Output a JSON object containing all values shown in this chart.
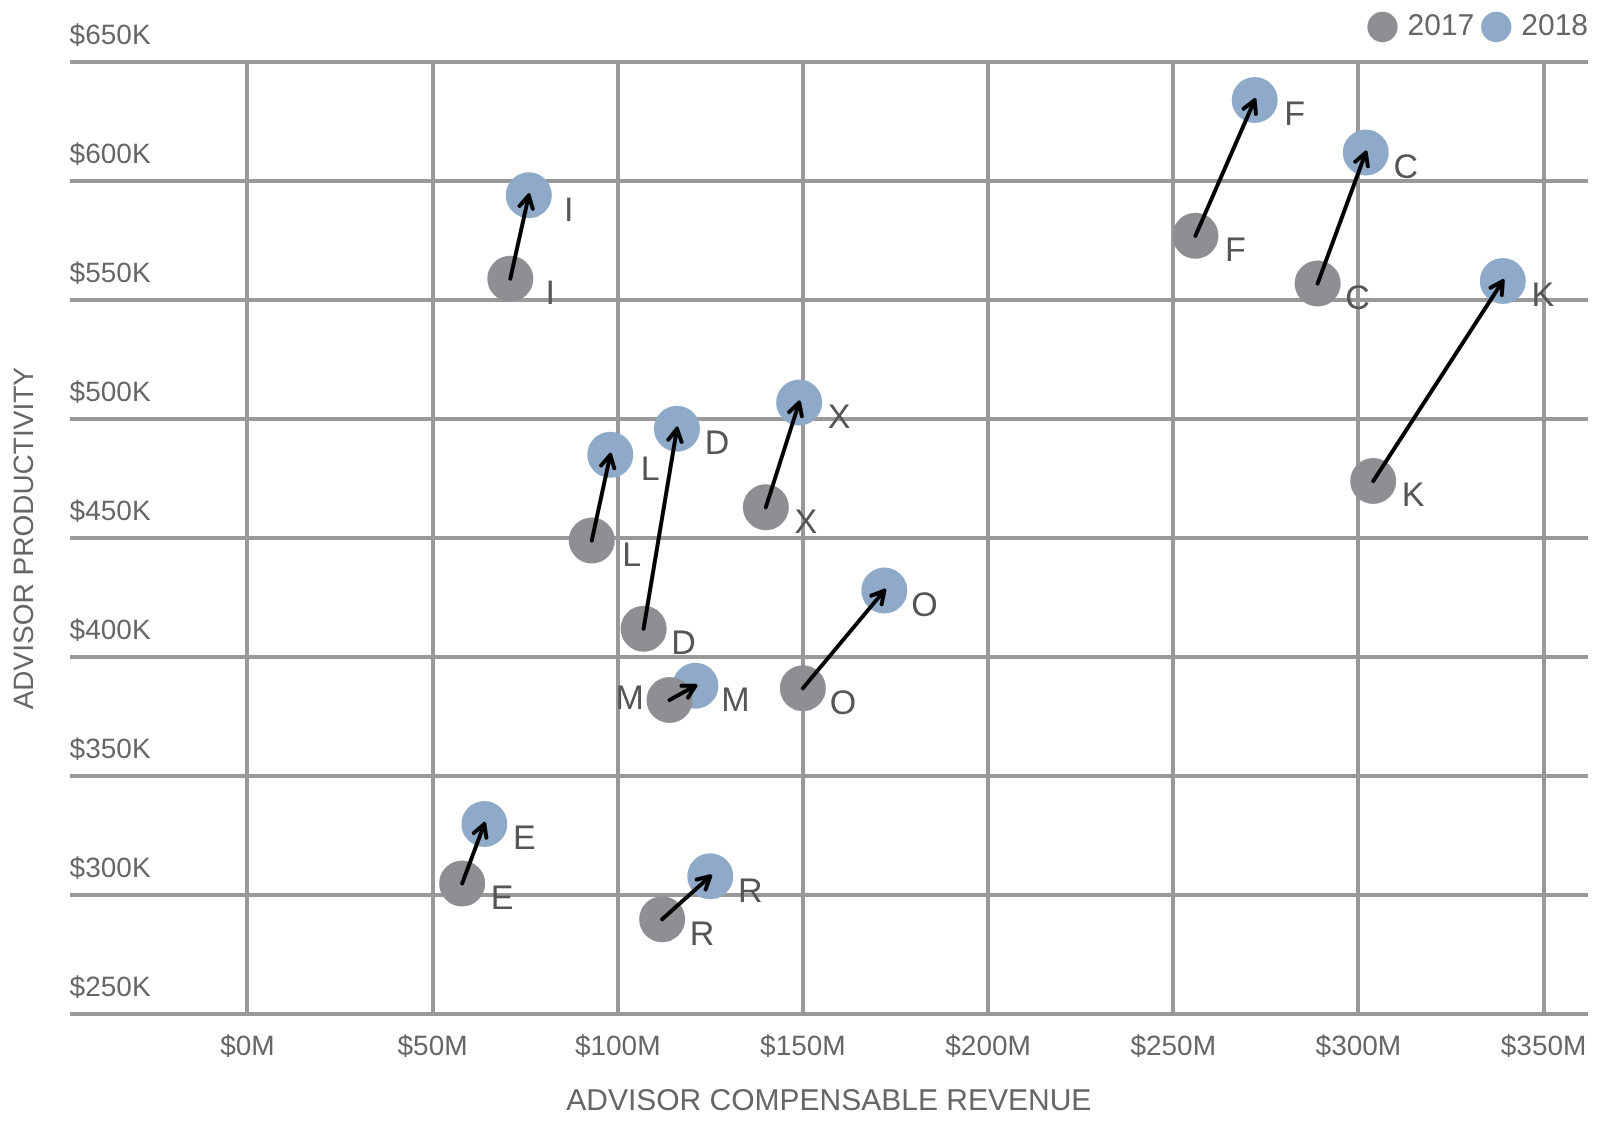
{
  "chart_data": {
    "type": "scatter",
    "xlabel": "ADVISOR COMPENSABLE REVENUE",
    "ylabel": "ADVISOR PRODUCTIVITY",
    "series": [
      {
        "name": "2017",
        "color": "#8e8f93",
        "x": [
          71,
          93,
          107,
          140,
          114,
          150,
          58,
          112,
          256,
          289,
          304
        ],
        "values": [
          559,
          449,
          412,
          463,
          382,
          387,
          305,
          290,
          577,
          557,
          474
        ]
      },
      {
        "name": "2018",
        "color": "#8eaac8",
        "x": [
          76,
          98,
          116,
          149,
          121,
          172,
          64,
          125,
          272,
          302,
          339
        ],
        "values": [
          594,
          485,
          496,
          507,
          388,
          428,
          330,
          308,
          634,
          612,
          558
        ]
      }
    ],
    "annotations": [
      {
        "text": "I",
        "x": 71,
        "y": 559
      },
      {
        "text": "L",
        "x": 93,
        "y": 449
      },
      {
        "text": "D",
        "x": 107,
        "y": 412
      },
      {
        "text": "X",
        "x": 140,
        "y": 463
      },
      {
        "text": "M",
        "x": 114,
        "y": 382
      },
      {
        "text": "O",
        "x": 150,
        "y": 387
      },
      {
        "text": "E",
        "x": 58,
        "y": 305
      },
      {
        "text": "R",
        "x": 112,
        "y": 290
      },
      {
        "text": "F",
        "x": 256,
        "y": 577
      },
      {
        "text": "C",
        "x": 289,
        "y": 557
      },
      {
        "text": "K",
        "x": 304,
        "y": 474
      },
      {
        "text": "I",
        "x": 76,
        "y": 594
      },
      {
        "text": "L",
        "x": 98,
        "y": 485
      },
      {
        "text": "D",
        "x": 116,
        "y": 496
      },
      {
        "text": "X",
        "x": 149,
        "y": 507
      },
      {
        "text": "M",
        "x": 121,
        "y": 388
      },
      {
        "text": "O",
        "x": 172,
        "y": 428
      },
      {
        "text": "E",
        "x": 64,
        "y": 330
      },
      {
        "text": "R",
        "x": 125,
        "y": 308
      },
      {
        "text": "F",
        "x": 272,
        "y": 634
      },
      {
        "text": "C",
        "x": 302,
        "y": 612
      },
      {
        "text": "K",
        "x": 339,
        "y": 558
      }
    ],
    "xlim": [
      -48,
      362
    ],
    "xticks": [
      {
        "value": 0,
        "label": "$0M"
      },
      {
        "value": 50,
        "label": "$50M"
      },
      {
        "value": 100,
        "label": "$100M"
      },
      {
        "value": 150,
        "label": "$150M"
      },
      {
        "value": 200,
        "label": "$200M"
      },
      {
        "value": 250,
        "label": "$250M"
      },
      {
        "value": 300,
        "label": "$300M"
      },
      {
        "value": 350,
        "label": "$350M"
      }
    ],
    "ylim": [
      250,
      650
    ],
    "yticks": [
      {
        "value": 250,
        "label": "$250K"
      },
      {
        "value": 300,
        "label": "$300K"
      },
      {
        "value": 350,
        "label": "$350K"
      },
      {
        "value": 400,
        "label": "$400K"
      },
      {
        "value": 450,
        "label": "$450K"
      },
      {
        "value": 500,
        "label": "$500K"
      },
      {
        "value": 550,
        "label": "$550K"
      },
      {
        "value": 600,
        "label": "$600K"
      },
      {
        "value": 650,
        "label": "$650K"
      }
    ],
    "grid": true,
    "legend": "top right",
    "marker": "circle",
    "line_style": "none"
  }
}
